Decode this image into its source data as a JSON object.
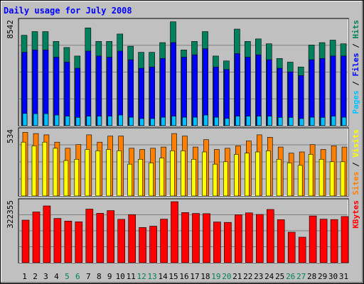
{
  "chart_data": {
    "type": "bar",
    "title": "Daily usage for July 2008",
    "colors": {
      "background": "#c0c0c0",
      "plot": "#c0c0c0",
      "title": "#0000ff",
      "hits": "#00805c",
      "files": "#0000ff",
      "pages": "#00c0ff",
      "visits": "#ffff00",
      "sites": "#ff8000",
      "kbytes": "#ff0000",
      "weekend_label": "#00805c",
      "weekday_label": "#000000"
    },
    "days": [
      "1",
      "2",
      "3",
      "4",
      "5",
      "6",
      "7",
      "8",
      "9",
      "10",
      "11",
      "12",
      "13",
      "14",
      "15",
      "16",
      "17",
      "18",
      "19",
      "20",
      "21",
      "22",
      "23",
      "24",
      "25",
      "26",
      "27",
      "28",
      "29",
      "30",
      "31"
    ],
    "weekend_days": [
      "5",
      "6",
      "12",
      "13",
      "19",
      "20",
      "26",
      "27"
    ],
    "panels": [
      {
        "id": "requests",
        "max_label": "8542",
        "ymax": 8542,
        "legend": [
          {
            "text": "Pages",
            "color": "#00c0ff"
          },
          {
            "text": " / ",
            "color": "#000000"
          },
          {
            "text": "Files",
            "color": "#0000ff"
          },
          {
            "text": " / ",
            "color": "#000000"
          },
          {
            "text": "Hits",
            "color": "#00805c"
          }
        ],
        "series": [
          {
            "name": "Hits",
            "color": "#00805c",
            "values": [
              7400,
              7700,
              7700,
              6900,
              6400,
              5700,
              8000,
              6900,
              6900,
              7500,
              6500,
              6000,
              6000,
              6800,
              8500,
              6200,
              6900,
              7700,
              5700,
              5300,
              7900,
              6900,
              7100,
              6700,
              5500,
              5200,
              4800,
              6600,
              6800,
              7000,
              6700
            ]
          },
          {
            "name": "Files",
            "color": "#0000ff",
            "values": [
              6000,
              6200,
              6200,
              5600,
              5200,
              4700,
              6100,
              5700,
              5600,
              6100,
              5400,
              4700,
              4800,
              5500,
              6800,
              5600,
              5800,
              6300,
              4800,
              4600,
              5900,
              5600,
              5800,
              5400,
              4700,
              4400,
              4100,
              5400,
              5500,
              5700,
              5700
            ]
          },
          {
            "name": "Pages",
            "color": "#00c0ff",
            "values": [
              1000,
              980,
              980,
              870,
              780,
              680,
              780,
              780,
              780,
              870,
              690,
              580,
              580,
              690,
              780,
              690,
              690,
              870,
              690,
              590,
              780,
              780,
              780,
              780,
              680,
              680,
              580,
              690,
              680,
              780,
              690
            ]
          }
        ]
      },
      {
        "id": "visitors",
        "max_label": "534",
        "ymax": 534,
        "legend": [
          {
            "text": "Sites",
            "color": "#ff8000"
          },
          {
            "text": " / ",
            "color": "#000000"
          },
          {
            "text": "Visits",
            "color": "#ffff00"
          }
        ],
        "series": [
          {
            "name": "Sites",
            "color": "#ff8000",
            "values": [
              520,
              510,
              500,
              440,
              390,
              420,
              500,
              440,
              490,
              490,
              390,
              380,
              390,
              400,
              510,
              490,
              400,
              460,
              380,
              390,
              410,
              450,
              500,
              480,
              400,
              350,
              360,
              420,
              380,
              410,
              400
            ]
          },
          {
            "name": "Visits",
            "color": "#ffff00",
            "values": [
              440,
              410,
              440,
              390,
              290,
              300,
              380,
              370,
              380,
              370,
              260,
              300,
              270,
              310,
              370,
              370,
              300,
              360,
              260,
              280,
              340,
              350,
              360,
              370,
              300,
              270,
              250,
              340,
              300,
              280,
              280
            ]
          }
        ]
      },
      {
        "id": "volume",
        "max_label": "322355",
        "ymax": 322355,
        "legend": [
          {
            "text": "KBytes",
            "color": "#ff0000"
          }
        ],
        "series": [
          {
            "name": "KBytes",
            "color": "#ff0000",
            "values": [
              225000,
              268000,
              300000,
              234000,
              220000,
              216000,
              283000,
              261000,
              275000,
              229000,
              254000,
              186000,
              193000,
              230000,
              322355,
              265000,
              260000,
              259000,
              215000,
              213000,
              253000,
              263000,
              255000,
              281000,
              227000,
              161000,
              135000,
              247000,
              230000,
              228000,
              244000
            ]
          }
        ]
      }
    ]
  }
}
